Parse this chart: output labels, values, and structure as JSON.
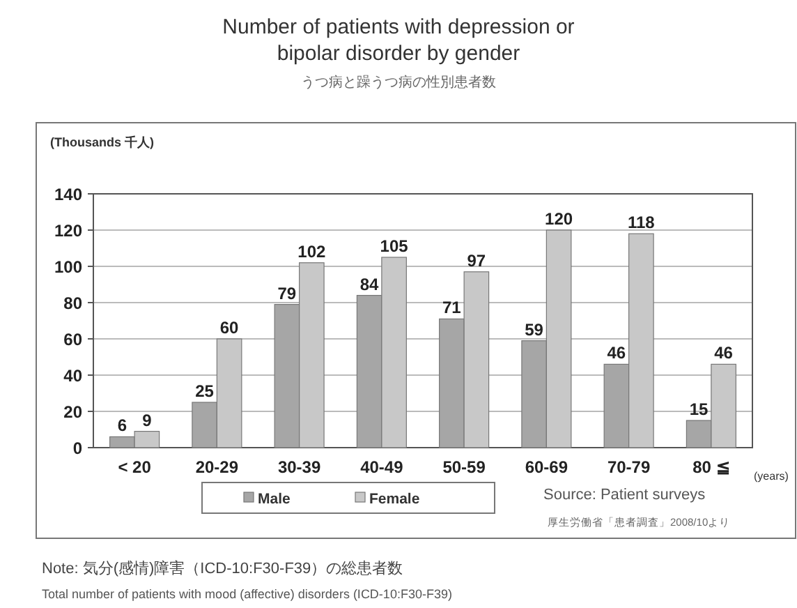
{
  "chart_data": {
    "type": "bar",
    "title": "Number of patients with depression or bipolar disorder by gender",
    "subtitle": "うつ病と躁うつ病の性別患者数",
    "ylabel": "(Thousands 千人)",
    "xlabel": "(years)",
    "categories": [
      "< 20",
      "20-29",
      "30-39",
      "40-49",
      "50-59",
      "60-69",
      "70-79",
      "80 ≦"
    ],
    "series": [
      {
        "name": "Male",
        "color": "#a6a6a6",
        "values": [
          6,
          25,
          79,
          84,
          71,
          59,
          46,
          15
        ]
      },
      {
        "name": "Female",
        "color": "#c8c8c8",
        "values": [
          9,
          60,
          102,
          105,
          97,
          120,
          118,
          46
        ]
      }
    ],
    "ylim": [
      0,
      140
    ],
    "yticks": [
      0,
      20,
      40,
      60,
      80,
      100,
      120,
      140
    ],
    "grid": "y",
    "legend": "bottom",
    "data_labels": true,
    "annotations": [
      "Source: Patient surveys",
      "厚生労働省「患者調査」2008/10より",
      "Note: 気分(感情)障害（ICD-10:F30-F39）の総患者数",
      "Total number of patients with mood (affective) disorders (ICD-10:F30-F39)"
    ]
  }
}
